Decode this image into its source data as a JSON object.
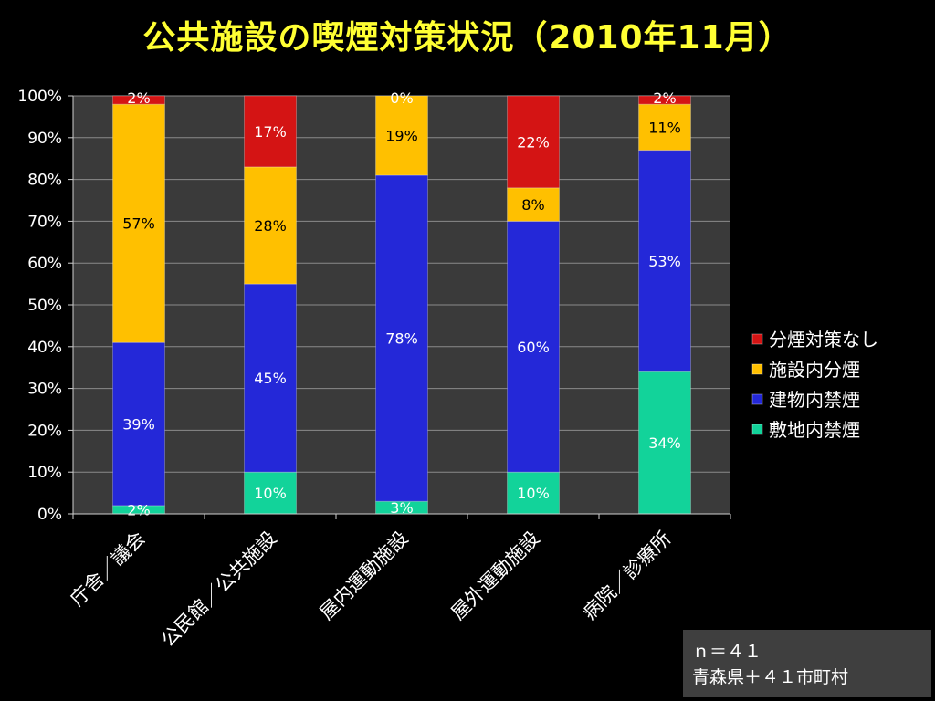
{
  "chart_data": {
    "type": "bar",
    "stacked": true,
    "title": "公共施設の喫煙対策状況（2010年11月）",
    "categories": [
      "庁舎／議会",
      "公民館／公共施設",
      "屋内運動施設",
      "屋外運動施設",
      "病院／診療所"
    ],
    "series": [
      {
        "name": "敷地内禁煙",
        "color": "#12d39a",
        "values": [
          2,
          10,
          3,
          10,
          34
        ]
      },
      {
        "name": "建物内禁煙",
        "color": "#2428d8",
        "values": [
          39,
          45,
          78,
          60,
          53
        ]
      },
      {
        "name": "施設内分煙",
        "color": "#ffc000",
        "values": [
          57,
          28,
          19,
          8,
          11
        ]
      },
      {
        "name": "分煙対策なし",
        "color": "#d41414",
        "values": [
          2,
          17,
          0,
          22,
          2
        ]
      }
    ],
    "ylim": [
      0,
      100
    ],
    "ytick_labels": [
      "0%",
      "10%",
      "20%",
      "30%",
      "40%",
      "50%",
      "60%",
      "70%",
      "80%",
      "90%",
      "100%"
    ],
    "legend_order": [
      "分煙対策なし",
      "施設内分煙",
      "建物内禁煙",
      "敷地内禁煙"
    ],
    "legend_placement": "right",
    "grid": true,
    "plot_background": "#3a3a3a",
    "label_suffix": "%"
  },
  "note": {
    "line1": "ｎ＝４１",
    "line2": "青森県＋４１市町村"
  }
}
